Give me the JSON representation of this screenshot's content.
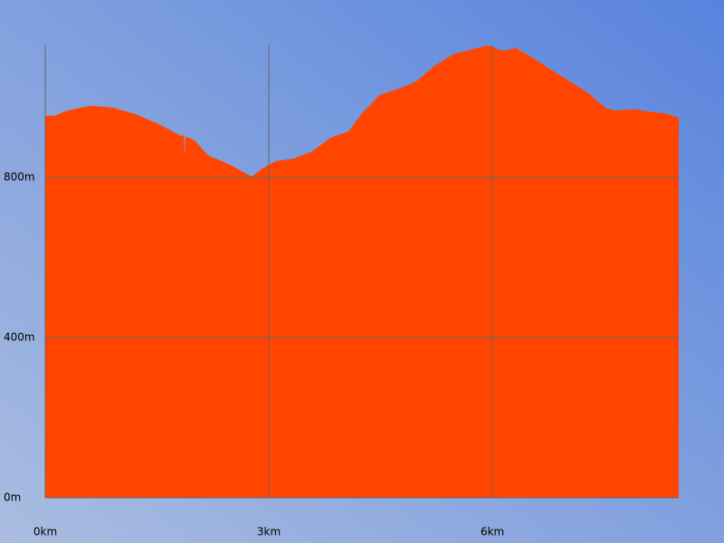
{
  "chart_data": {
    "type": "area",
    "color": "#ff4500",
    "grid": true,
    "x": [
      0,
      0.12,
      0.3,
      0.61,
      0.91,
      1.21,
      1.52,
      1.82,
      1.86,
      1.87,
      1.88,
      2.0,
      2.19,
      2.43,
      2.61,
      2.77,
      2.92,
      3.1,
      3.34,
      3.58,
      3.83,
      4.07,
      4.25,
      4.49,
      4.74,
      4.98,
      5.22,
      5.47,
      5.71,
      5.95,
      6.13,
      6.32,
      6.56,
      6.8,
      7.04,
      7.29,
      7.53,
      7.65,
      7.9,
      8.14,
      8.32,
      8.5
    ],
    "y": [
      954,
      954,
      967,
      979,
      974,
      958,
      933,
      904,
      905,
      850,
      902,
      893,
      854,
      836,
      818,
      802,
      823,
      841,
      847,
      865,
      899,
      915,
      960,
      1006,
      1021,
      1040,
      1078,
      1107,
      1119,
      1130,
      1116,
      1123,
      1096,
      1067,
      1040,
      1010,
      972,
      967,
      970,
      963,
      960,
      949
    ],
    "xlim": [
      0,
      8.5
    ],
    "ylim": [
      0,
      1130
    ],
    "xticks": [
      {
        "value": 0,
        "label": "0km"
      },
      {
        "value": 3,
        "label": "3km"
      },
      {
        "value": 6,
        "label": "6km"
      }
    ],
    "yticks": [
      {
        "value": 0,
        "label": "0m"
      },
      {
        "value": 400,
        "label": "400m"
      },
      {
        "value": 800,
        "label": "800m"
      }
    ]
  }
}
